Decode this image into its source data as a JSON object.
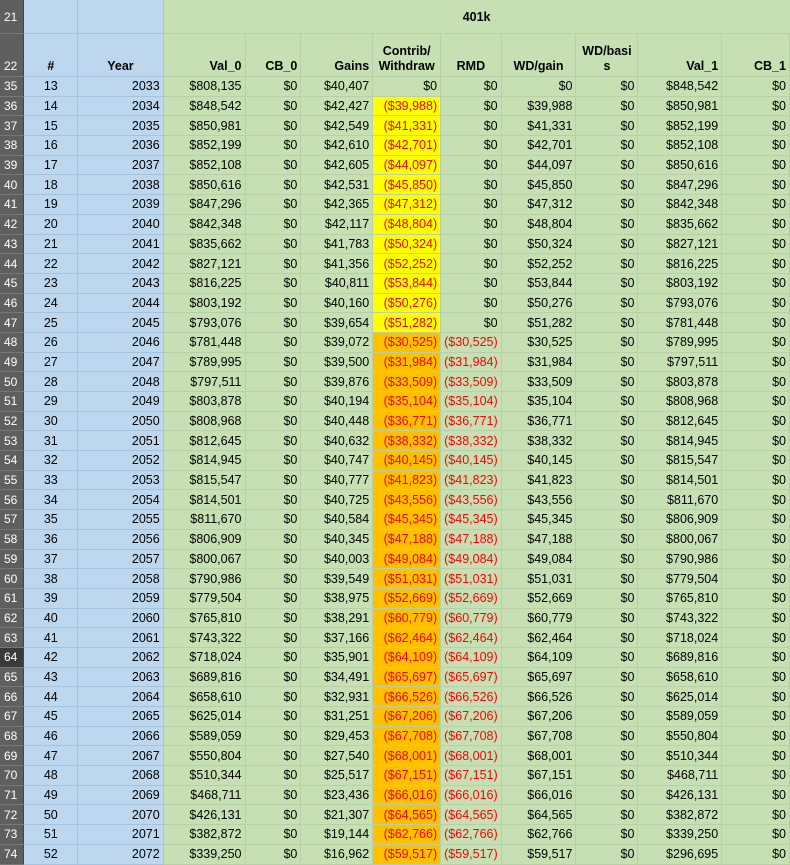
{
  "sheet": {
    "group_title": "401k",
    "header_row_numbers": [
      "21",
      "22"
    ],
    "selected_row": "64",
    "columns": {
      "num": "#",
      "year": "Year",
      "val0": "Val_0",
      "cb0": "CB_0",
      "gains": "Gains",
      "contrib": "Contrib/ Withdraw",
      "rmd": "RMD",
      "wdgain": "WD/gain",
      "wdbasis": "WD/basi s",
      "val1": "Val_1",
      "cb1": "CB_1"
    },
    "colors": {
      "green": "#c6e0b4",
      "blue": "#bdd7ee",
      "yellow": "#ffff00",
      "orange": "#ffc000",
      "negative": "#ff0000"
    },
    "rows": [
      {
        "r": "35",
        "n": "13",
        "y": "2033",
        "v0": "$808,135",
        "cb0": "$0",
        "g": "$40,407",
        "c": "$0",
        "rmd": "$0",
        "wg": "$0",
        "wb": "$0",
        "v1": "$848,542",
        "cb1": "$0",
        "fill": "green",
        "neg": false,
        "rneg": false
      },
      {
        "r": "36",
        "n": "14",
        "y": "2034",
        "v0": "$848,542",
        "cb0": "$0",
        "g": "$42,427",
        "c": "($39,988)",
        "rmd": "$0",
        "wg": "$39,988",
        "wb": "$0",
        "v1": "$850,981",
        "cb1": "$0",
        "fill": "yellow",
        "neg": true,
        "rneg": false
      },
      {
        "r": "37",
        "n": "15",
        "y": "2035",
        "v0": "$850,981",
        "cb0": "$0",
        "g": "$42,549",
        "c": "($41,331)",
        "rmd": "$0",
        "wg": "$41,331",
        "wb": "$0",
        "v1": "$852,199",
        "cb1": "$0",
        "fill": "yellow",
        "neg": true,
        "rneg": false
      },
      {
        "r": "38",
        "n": "16",
        "y": "2036",
        "v0": "$852,199",
        "cb0": "$0",
        "g": "$42,610",
        "c": "($42,701)",
        "rmd": "$0",
        "wg": "$42,701",
        "wb": "$0",
        "v1": "$852,108",
        "cb1": "$0",
        "fill": "yellow",
        "neg": true,
        "rneg": false
      },
      {
        "r": "39",
        "n": "17",
        "y": "2037",
        "v0": "$852,108",
        "cb0": "$0",
        "g": "$42,605",
        "c": "($44,097)",
        "rmd": "$0",
        "wg": "$44,097",
        "wb": "$0",
        "v1": "$850,616",
        "cb1": "$0",
        "fill": "yellow",
        "neg": true,
        "rneg": false
      },
      {
        "r": "40",
        "n": "18",
        "y": "2038",
        "v0": "$850,616",
        "cb0": "$0",
        "g": "$42,531",
        "c": "($45,850)",
        "rmd": "$0",
        "wg": "$45,850",
        "wb": "$0",
        "v1": "$847,296",
        "cb1": "$0",
        "fill": "yellow",
        "neg": true,
        "rneg": false
      },
      {
        "r": "41",
        "n": "19",
        "y": "2039",
        "v0": "$847,296",
        "cb0": "$0",
        "g": "$42,365",
        "c": "($47,312)",
        "rmd": "$0",
        "wg": "$47,312",
        "wb": "$0",
        "v1": "$842,348",
        "cb1": "$0",
        "fill": "yellow",
        "neg": true,
        "rneg": false
      },
      {
        "r": "42",
        "n": "20",
        "y": "2040",
        "v0": "$842,348",
        "cb0": "$0",
        "g": "$42,117",
        "c": "($48,804)",
        "rmd": "$0",
        "wg": "$48,804",
        "wb": "$0",
        "v1": "$835,662",
        "cb1": "$0",
        "fill": "yellow",
        "neg": true,
        "rneg": false
      },
      {
        "r": "43",
        "n": "21",
        "y": "2041",
        "v0": "$835,662",
        "cb0": "$0",
        "g": "$41,783",
        "c": "($50,324)",
        "rmd": "$0",
        "wg": "$50,324",
        "wb": "$0",
        "v1": "$827,121",
        "cb1": "$0",
        "fill": "yellow",
        "neg": true,
        "rneg": false
      },
      {
        "r": "44",
        "n": "22",
        "y": "2042",
        "v0": "$827,121",
        "cb0": "$0",
        "g": "$41,356",
        "c": "($52,252)",
        "rmd": "$0",
        "wg": "$52,252",
        "wb": "$0",
        "v1": "$816,225",
        "cb1": "$0",
        "fill": "yellow",
        "neg": true,
        "rneg": false
      },
      {
        "r": "45",
        "n": "23",
        "y": "2043",
        "v0": "$816,225",
        "cb0": "$0",
        "g": "$40,811",
        "c": "($53,844)",
        "rmd": "$0",
        "wg": "$53,844",
        "wb": "$0",
        "v1": "$803,192",
        "cb1": "$0",
        "fill": "yellow",
        "neg": true,
        "rneg": false
      },
      {
        "r": "46",
        "n": "24",
        "y": "2044",
        "v0": "$803,192",
        "cb0": "$0",
        "g": "$40,160",
        "c": "($50,276)",
        "rmd": "$0",
        "wg": "$50,276",
        "wb": "$0",
        "v1": "$793,076",
        "cb1": "$0",
        "fill": "yellow",
        "neg": true,
        "rneg": false
      },
      {
        "r": "47",
        "n": "25",
        "y": "2045",
        "v0": "$793,076",
        "cb0": "$0",
        "g": "$39,654",
        "c": "($51,282)",
        "rmd": "$0",
        "wg": "$51,282",
        "wb": "$0",
        "v1": "$781,448",
        "cb1": "$0",
        "fill": "yellow",
        "neg": true,
        "rneg": false
      },
      {
        "r": "48",
        "n": "26",
        "y": "2046",
        "v0": "$781,448",
        "cb0": "$0",
        "g": "$39,072",
        "c": "($30,525)",
        "rmd": "($30,525)",
        "wg": "$30,525",
        "wb": "$0",
        "v1": "$789,995",
        "cb1": "$0",
        "fill": "orange",
        "neg": true,
        "rneg": true
      },
      {
        "r": "49",
        "n": "27",
        "y": "2047",
        "v0": "$789,995",
        "cb0": "$0",
        "g": "$39,500",
        "c": "($31,984)",
        "rmd": "($31,984)",
        "wg": "$31,984",
        "wb": "$0",
        "v1": "$797,511",
        "cb1": "$0",
        "fill": "orange",
        "neg": true,
        "rneg": true
      },
      {
        "r": "50",
        "n": "28",
        "y": "2048",
        "v0": "$797,511",
        "cb0": "$0",
        "g": "$39,876",
        "c": "($33,509)",
        "rmd": "($33,509)",
        "wg": "$33,509",
        "wb": "$0",
        "v1": "$803,878",
        "cb1": "$0",
        "fill": "orange",
        "neg": true,
        "rneg": true
      },
      {
        "r": "51",
        "n": "29",
        "y": "2049",
        "v0": "$803,878",
        "cb0": "$0",
        "g": "$40,194",
        "c": "($35,104)",
        "rmd": "($35,104)",
        "wg": "$35,104",
        "wb": "$0",
        "v1": "$808,968",
        "cb1": "$0",
        "fill": "orange",
        "neg": true,
        "rneg": true
      },
      {
        "r": "52",
        "n": "30",
        "y": "2050",
        "v0": "$808,968",
        "cb0": "$0",
        "g": "$40,448",
        "c": "($36,771)",
        "rmd": "($36,771)",
        "wg": "$36,771",
        "wb": "$0",
        "v1": "$812,645",
        "cb1": "$0",
        "fill": "orange",
        "neg": true,
        "rneg": true
      },
      {
        "r": "53",
        "n": "31",
        "y": "2051",
        "v0": "$812,645",
        "cb0": "$0",
        "g": "$40,632",
        "c": "($38,332)",
        "rmd": "($38,332)",
        "wg": "$38,332",
        "wb": "$0",
        "v1": "$814,945",
        "cb1": "$0",
        "fill": "orange",
        "neg": true,
        "rneg": true
      },
      {
        "r": "54",
        "n": "32",
        "y": "2052",
        "v0": "$814,945",
        "cb0": "$0",
        "g": "$40,747",
        "c": "($40,145)",
        "rmd": "($40,145)",
        "wg": "$40,145",
        "wb": "$0",
        "v1": "$815,547",
        "cb1": "$0",
        "fill": "orange",
        "neg": true,
        "rneg": true
      },
      {
        "r": "55",
        "n": "33",
        "y": "2053",
        "v0": "$815,547",
        "cb0": "$0",
        "g": "$40,777",
        "c": "($41,823)",
        "rmd": "($41,823)",
        "wg": "$41,823",
        "wb": "$0",
        "v1": "$814,501",
        "cb1": "$0",
        "fill": "orange",
        "neg": true,
        "rneg": true
      },
      {
        "r": "56",
        "n": "34",
        "y": "2054",
        "v0": "$814,501",
        "cb0": "$0",
        "g": "$40,725",
        "c": "($43,556)",
        "rmd": "($43,556)",
        "wg": "$43,556",
        "wb": "$0",
        "v1": "$811,670",
        "cb1": "$0",
        "fill": "orange",
        "neg": true,
        "rneg": true
      },
      {
        "r": "57",
        "n": "35",
        "y": "2055",
        "v0": "$811,670",
        "cb0": "$0",
        "g": "$40,584",
        "c": "($45,345)",
        "rmd": "($45,345)",
        "wg": "$45,345",
        "wb": "$0",
        "v1": "$806,909",
        "cb1": "$0",
        "fill": "orange",
        "neg": true,
        "rneg": true
      },
      {
        "r": "58",
        "n": "36",
        "y": "2056",
        "v0": "$806,909",
        "cb0": "$0",
        "g": "$40,345",
        "c": "($47,188)",
        "rmd": "($47,188)",
        "wg": "$47,188",
        "wb": "$0",
        "v1": "$800,067",
        "cb1": "$0",
        "fill": "orange",
        "neg": true,
        "rneg": true
      },
      {
        "r": "59",
        "n": "37",
        "y": "2057",
        "v0": "$800,067",
        "cb0": "$0",
        "g": "$40,003",
        "c": "($49,084)",
        "rmd": "($49,084)",
        "wg": "$49,084",
        "wb": "$0",
        "v1": "$790,986",
        "cb1": "$0",
        "fill": "orange",
        "neg": true,
        "rneg": true
      },
      {
        "r": "60",
        "n": "38",
        "y": "2058",
        "v0": "$790,986",
        "cb0": "$0",
        "g": "$39,549",
        "c": "($51,031)",
        "rmd": "($51,031)",
        "wg": "$51,031",
        "wb": "$0",
        "v1": "$779,504",
        "cb1": "$0",
        "fill": "orange",
        "neg": true,
        "rneg": true
      },
      {
        "r": "61",
        "n": "39",
        "y": "2059",
        "v0": "$779,504",
        "cb0": "$0",
        "g": "$38,975",
        "c": "($52,669)",
        "rmd": "($52,669)",
        "wg": "$52,669",
        "wb": "$0",
        "v1": "$765,810",
        "cb1": "$0",
        "fill": "orange",
        "neg": true,
        "rneg": true
      },
      {
        "r": "62",
        "n": "40",
        "y": "2060",
        "v0": "$765,810",
        "cb0": "$0",
        "g": "$38,291",
        "c": "($60,779)",
        "rmd": "($60,779)",
        "wg": "$60,779",
        "wb": "$0",
        "v1": "$743,322",
        "cb1": "$0",
        "fill": "orange",
        "neg": true,
        "rneg": true
      },
      {
        "r": "63",
        "n": "41",
        "y": "2061",
        "v0": "$743,322",
        "cb0": "$0",
        "g": "$37,166",
        "c": "($62,464)",
        "rmd": "($62,464)",
        "wg": "$62,464",
        "wb": "$0",
        "v1": "$718,024",
        "cb1": "$0",
        "fill": "orange",
        "neg": true,
        "rneg": true
      },
      {
        "r": "64",
        "n": "42",
        "y": "2062",
        "v0": "$718,024",
        "cb0": "$0",
        "g": "$35,901",
        "c": "($64,109)",
        "rmd": "($64,109)",
        "wg": "$64,109",
        "wb": "$0",
        "v1": "$689,816",
        "cb1": "$0",
        "fill": "orange",
        "neg": true,
        "rneg": true
      },
      {
        "r": "65",
        "n": "43",
        "y": "2063",
        "v0": "$689,816",
        "cb0": "$0",
        "g": "$34,491",
        "c": "($65,697)",
        "rmd": "($65,697)",
        "wg": "$65,697",
        "wb": "$0",
        "v1": "$658,610",
        "cb1": "$0",
        "fill": "orange",
        "neg": true,
        "rneg": true
      },
      {
        "r": "66",
        "n": "44",
        "y": "2064",
        "v0": "$658,610",
        "cb0": "$0",
        "g": "$32,931",
        "c": "($66,526)",
        "rmd": "($66,526)",
        "wg": "$66,526",
        "wb": "$0",
        "v1": "$625,014",
        "cb1": "$0",
        "fill": "orange",
        "neg": true,
        "rneg": true
      },
      {
        "r": "67",
        "n": "45",
        "y": "2065",
        "v0": "$625,014",
        "cb0": "$0",
        "g": "$31,251",
        "c": "($67,206)",
        "rmd": "($67,206)",
        "wg": "$67,206",
        "wb": "$0",
        "v1": "$589,059",
        "cb1": "$0",
        "fill": "orange",
        "neg": true,
        "rneg": true
      },
      {
        "r": "68",
        "n": "46",
        "y": "2066",
        "v0": "$589,059",
        "cb0": "$0",
        "g": "$29,453",
        "c": "($67,708)",
        "rmd": "($67,708)",
        "wg": "$67,708",
        "wb": "$0",
        "v1": "$550,804",
        "cb1": "$0",
        "fill": "orange",
        "neg": true,
        "rneg": true
      },
      {
        "r": "69",
        "n": "47",
        "y": "2067",
        "v0": "$550,804",
        "cb0": "$0",
        "g": "$27,540",
        "c": "($68,001)",
        "rmd": "($68,001)",
        "wg": "$68,001",
        "wb": "$0",
        "v1": "$510,344",
        "cb1": "$0",
        "fill": "orange",
        "neg": true,
        "rneg": true
      },
      {
        "r": "70",
        "n": "48",
        "y": "2068",
        "v0": "$510,344",
        "cb0": "$0",
        "g": "$25,517",
        "c": "($67,151)",
        "rmd": "($67,151)",
        "wg": "$67,151",
        "wb": "$0",
        "v1": "$468,711",
        "cb1": "$0",
        "fill": "orange",
        "neg": true,
        "rneg": true
      },
      {
        "r": "71",
        "n": "49",
        "y": "2069",
        "v0": "$468,711",
        "cb0": "$0",
        "g": "$23,436",
        "c": "($66,016)",
        "rmd": "($66,016)",
        "wg": "$66,016",
        "wb": "$0",
        "v1": "$426,131",
        "cb1": "$0",
        "fill": "orange",
        "neg": true,
        "rneg": true
      },
      {
        "r": "72",
        "n": "50",
        "y": "2070",
        "v0": "$426,131",
        "cb0": "$0",
        "g": "$21,307",
        "c": "($64,565)",
        "rmd": "($64,565)",
        "wg": "$64,565",
        "wb": "$0",
        "v1": "$382,872",
        "cb1": "$0",
        "fill": "orange",
        "neg": true,
        "rneg": true
      },
      {
        "r": "73",
        "n": "51",
        "y": "2071",
        "v0": "$382,872",
        "cb0": "$0",
        "g": "$19,144",
        "c": "($62,766)",
        "rmd": "($62,766)",
        "wg": "$62,766",
        "wb": "$0",
        "v1": "$339,250",
        "cb1": "$0",
        "fill": "orange",
        "neg": true,
        "rneg": true
      },
      {
        "r": "74",
        "n": "52",
        "y": "2072",
        "v0": "$339,250",
        "cb0": "$0",
        "g": "$16,962",
        "c": "($59,517)",
        "rmd": "($59,517)",
        "wg": "$59,517",
        "wb": "$0",
        "v1": "$296,695",
        "cb1": "$0",
        "fill": "orange",
        "neg": true,
        "rneg": true
      }
    ]
  }
}
